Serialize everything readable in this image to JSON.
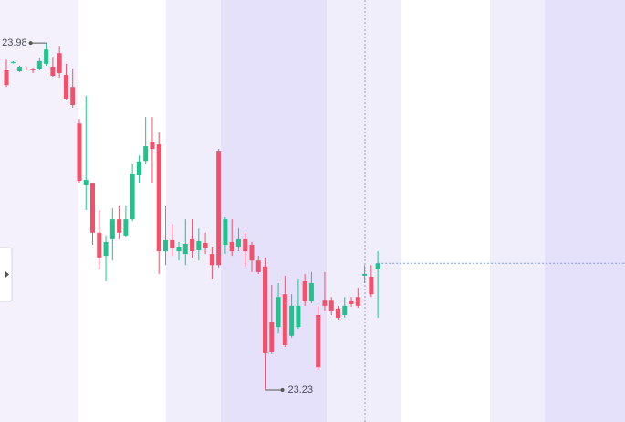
{
  "chart_data": {
    "type": "candlestick",
    "ylim": [
      23.161,
      24.073
    ],
    "up_color": "#1ec48c",
    "down_color": "#f2506b",
    "high_label": "23.98",
    "low_label": "23.23",
    "open": [
      23.921,
      23.937,
      23.919,
      23.925,
      23.923,
      23.925,
      23.935,
      23.929,
      23.958,
      23.911,
      23.885,
      23.806,
      23.674,
      23.678,
      23.57,
      23.52,
      23.556,
      23.599,
      23.564,
      23.599,
      23.694,
      23.725,
      23.767,
      23.761,
      23.53,
      23.554,
      23.53,
      23.524,
      23.556,
      23.532,
      23.548,
      23.524,
      23.747,
      23.544,
      23.55,
      23.54,
      23.556,
      23.544,
      23.51,
      23.497,
      23.378,
      23.366,
      23.437,
      23.347,
      23.366,
      23.465,
      23.422,
      23.392,
      23.425,
      23.425,
      23.406,
      23.392,
      23.422,
      23.431,
      23.477,
      23.475,
      23.491
    ],
    "high": [
      23.944,
      23.941,
      23.931,
      23.929,
      23.927,
      23.948,
      23.98,
      23.95,
      23.974,
      23.935,
      23.925,
      23.816,
      23.866,
      23.678,
      23.619,
      23.564,
      23.623,
      23.629,
      23.629,
      23.718,
      23.737,
      23.82,
      23.82,
      23.787,
      23.629,
      23.589,
      23.55,
      23.599,
      23.599,
      23.579,
      23.57,
      23.54,
      23.751,
      23.603,
      23.599,
      23.579,
      23.57,
      23.55,
      23.52,
      23.516,
      23.457,
      23.461,
      23.477,
      23.437,
      23.471,
      23.481,
      23.485,
      23.412,
      23.485,
      23.431,
      23.412,
      23.431,
      23.431,
      23.451,
      23.5,
      23.5,
      23.53
    ],
    "low": [
      23.885,
      23.935,
      23.917,
      23.921,
      23.915,
      23.921,
      23.931,
      23.907,
      23.905,
      23.856,
      23.84,
      23.678,
      23.619,
      23.544,
      23.491,
      23.465,
      23.51,
      23.556,
      23.56,
      23.595,
      23.678,
      23.718,
      23.678,
      23.481,
      23.5,
      23.52,
      23.51,
      23.5,
      23.516,
      23.51,
      23.524,
      23.471,
      23.495,
      23.524,
      23.52,
      23.53,
      23.497,
      23.485,
      23.481,
      23.23,
      23.307,
      23.352,
      23.323,
      23.343,
      23.362,
      23.412,
      23.418,
      23.273,
      23.402,
      23.392,
      23.382,
      23.386,
      23.41,
      23.408,
      23.461,
      23.431,
      23.386
    ],
    "close": [
      23.889,
      23.939,
      23.929,
      23.923,
      23.921,
      23.941,
      23.966,
      23.909,
      23.915,
      23.86,
      23.846,
      23.682,
      23.684,
      23.57,
      23.516,
      23.55,
      23.599,
      23.57,
      23.599,
      23.698,
      23.724,
      23.757,
      23.751,
      23.53,
      23.554,
      23.536,
      23.54,
      23.546,
      23.53,
      23.552,
      23.536,
      23.5,
      23.5,
      23.599,
      23.53,
      23.556,
      23.53,
      23.51,
      23.485,
      23.309,
      23.313,
      23.431,
      23.327,
      23.412,
      23.412,
      23.422,
      23.461,
      23.279,
      23.412,
      23.402,
      23.386,
      23.412,
      23.416,
      23.412,
      23.481,
      23.437,
      23.504
    ]
  }
}
